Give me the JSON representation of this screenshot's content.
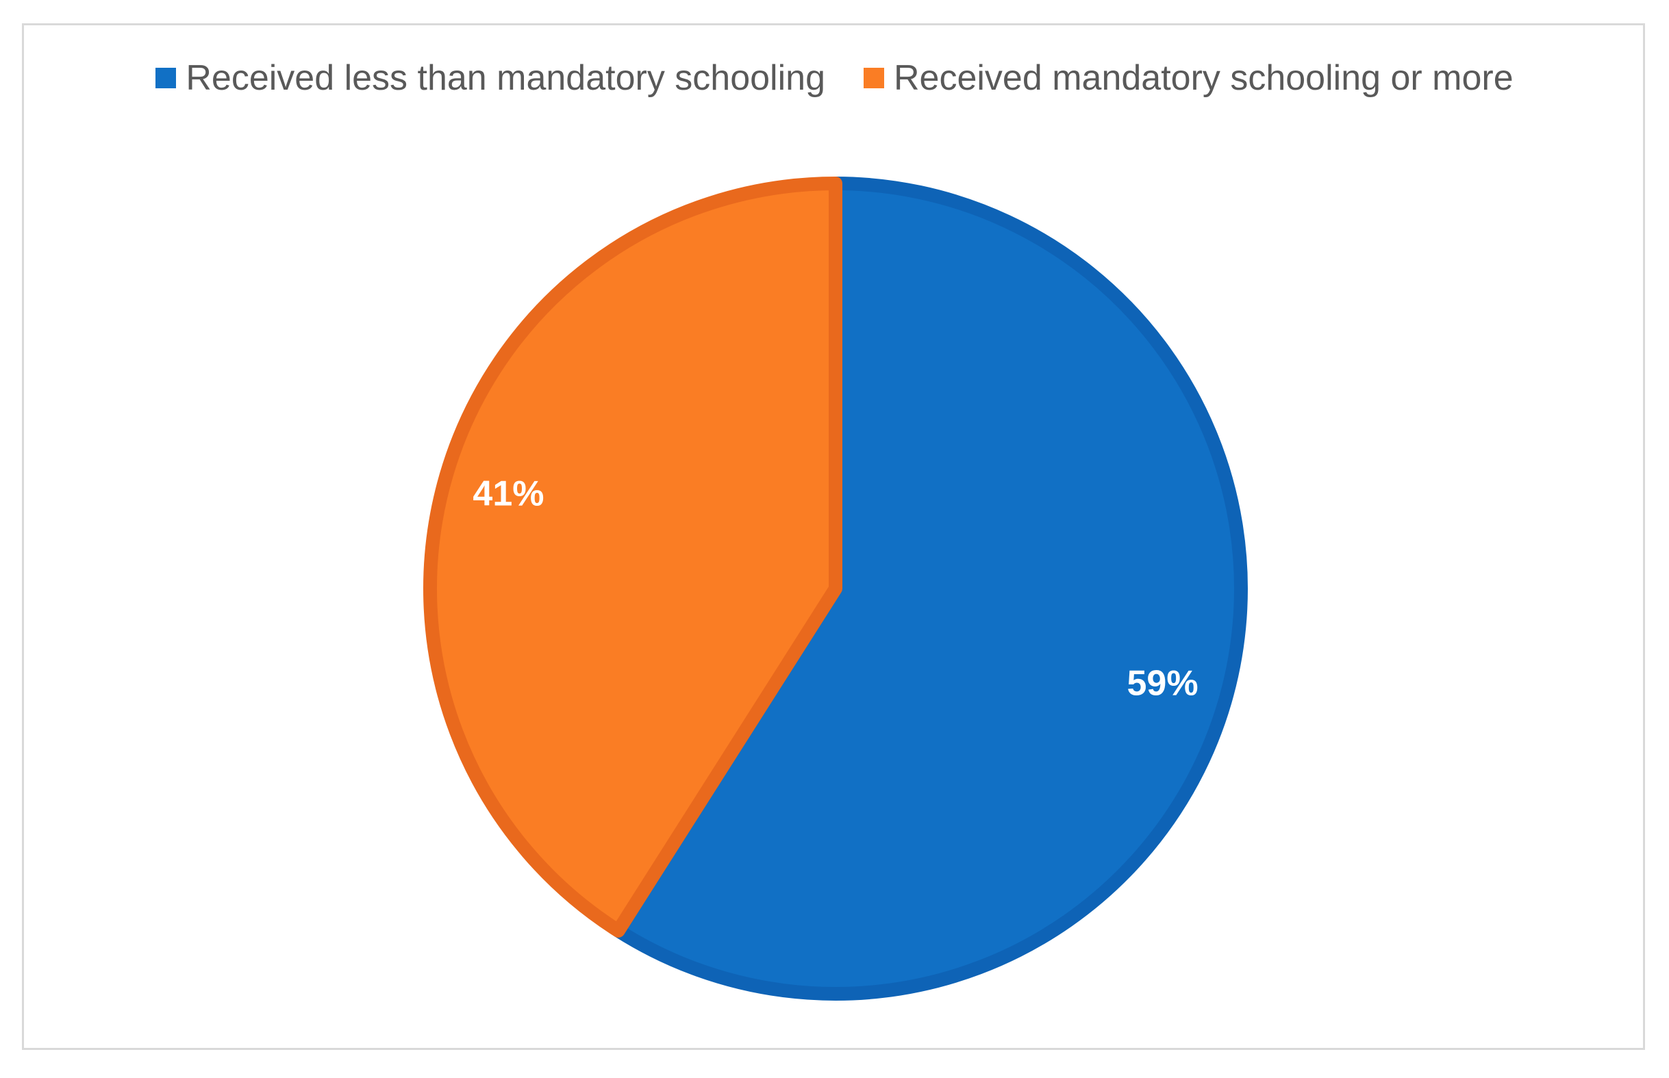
{
  "chart_data": {
    "type": "pie",
    "title": "",
    "slices": [
      {
        "label": "Received less than mandatory schooling",
        "value": 59,
        "display": "59%",
        "color": "#1170C5",
        "border": "#0E63B6"
      },
      {
        "label": "Received mandatory schooling or more",
        "value": 41,
        "display": "41%",
        "color": "#FA7D24",
        "border": "#E9691D"
      }
    ],
    "legend_position": "top"
  }
}
